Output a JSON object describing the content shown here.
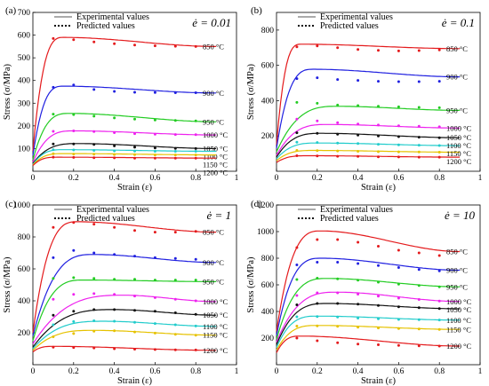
{
  "legend": {
    "line_label": "Experimental values",
    "dot_label": "Predicted values"
  },
  "chart_data": [
    {
      "type": "line",
      "panel": "(a)",
      "rate_label": "ė = 0.01",
      "xlabel": "Strain (ε)",
      "ylabel": "Stress (σ/MPa)",
      "xlim": [
        0,
        1
      ],
      "ylim": [
        0,
        700
      ],
      "xticks": [
        0,
        0.2,
        0.4,
        0.6,
        0.8,
        1
      ],
      "yticks": [
        100,
        200,
        300,
        400,
        500,
        600,
        700
      ],
      "series": [
        {
          "name": "850 °C",
          "color": "#e41a1c",
          "y0": 90,
          "peak_strain": 0.15,
          "peak_stress": 590,
          "final_stress": 550,
          "pred": [
            585,
            580,
            570,
            562,
            556,
            553,
            551,
            550
          ]
        },
        {
          "name": "900 °C",
          "color": "#2020e0",
          "y0": 70,
          "peak_strain": 0.15,
          "peak_stress": 375,
          "final_stress": 345,
          "pred": [
            370,
            380,
            360,
            352,
            348,
            347,
            346,
            346
          ]
        },
        {
          "name": "950 °C",
          "color": "#22cc22",
          "y0": 50,
          "peak_strain": 0.18,
          "peak_stress": 255,
          "final_stress": 218,
          "pred": [
            252,
            250,
            243,
            235,
            230,
            226,
            224,
            222
          ]
        },
        {
          "name": "1000 °C",
          "color": "#ee22ee",
          "y0": 40,
          "peak_strain": 0.2,
          "peak_stress": 178,
          "final_stress": 160,
          "pred": [
            176,
            178,
            175,
            170,
            166,
            163,
            162,
            161
          ]
        },
        {
          "name": "1050 °C",
          "color": "#111111",
          "y0": 35,
          "peak_strain": 0.22,
          "peak_stress": 122,
          "final_stress": 100,
          "pred": [
            120,
            120,
            118,
            112,
            106,
            103,
            101,
            100
          ]
        },
        {
          "name": "1100 °C",
          "color": "#22cccc",
          "y0": 30,
          "peak_strain": 0.15,
          "peak_stress": 95,
          "final_stress": 88,
          "pred": [
            95,
            94,
            92,
            90,
            89,
            88,
            88,
            88
          ]
        },
        {
          "name": "1150 °C",
          "color": "#e6c200",
          "y0": 28,
          "peak_strain": 0.15,
          "peak_stress": 78,
          "final_stress": 72,
          "pred": [
            77,
            76,
            75,
            74,
            73,
            72,
            72,
            72
          ]
        },
        {
          "name": "1200 °C",
          "color": "#e41a1c",
          "y0": 25,
          "peak_strain": 0.12,
          "peak_stress": 62,
          "final_stress": 58,
          "pred": [
            62,
            61,
            60,
            59,
            58,
            58,
            58,
            58
          ]
        }
      ]
    },
    {
      "type": "line",
      "panel": "(b)",
      "rate_label": "ė = 0.1",
      "xlabel": "Strain (ε)",
      "ylabel": "Stress (σ/MPa)",
      "xlim": [
        0,
        1
      ],
      "ylim": [
        0,
        900
      ],
      "xticks": [
        0,
        0.2,
        0.4,
        0.6,
        0.8,
        1
      ],
      "yticks": [
        200,
        400,
        600,
        800
      ],
      "series": [
        {
          "name": "850 °C",
          "color": "#e41a1c",
          "y0": 150,
          "peak_strain": 0.12,
          "peak_stress": 720,
          "final_stress": 695,
          "pred": [
            705,
            710,
            700,
            690,
            685,
            682,
            684,
            688
          ]
        },
        {
          "name": "900 °C",
          "color": "#2020e0",
          "y0": 130,
          "peak_strain": 0.18,
          "peak_stress": 578,
          "final_stress": 535,
          "pred": [
            525,
            530,
            520,
            515,
            510,
            508,
            508,
            510
          ]
        },
        {
          "name": "950 °C",
          "color": "#22cc22",
          "y0": 110,
          "peak_strain": 0.3,
          "peak_stress": 368,
          "final_stress": 345,
          "pred": [
            390,
            385,
            375,
            372,
            368,
            365,
            362,
            360
          ]
        },
        {
          "name": "1000 °C",
          "color": "#ee22ee",
          "y0": 90,
          "peak_strain": 0.25,
          "peak_stress": 265,
          "final_stress": 245,
          "pred": [
            295,
            285,
            275,
            268,
            262,
            258,
            255,
            252
          ]
        },
        {
          "name": "1050 °C",
          "color": "#111111",
          "y0": 80,
          "peak_strain": 0.22,
          "peak_stress": 215,
          "final_stress": 190,
          "pred": [
            218,
            215,
            210,
            205,
            200,
            196,
            193,
            190
          ]
        },
        {
          "name": "1100 °C",
          "color": "#22cccc",
          "y0": 70,
          "peak_strain": 0.2,
          "peak_stress": 160,
          "final_stress": 145,
          "pred": [
            165,
            163,
            160,
            157,
            153,
            150,
            148,
            146
          ]
        },
        {
          "name": "1150 °C",
          "color": "#e6c200",
          "y0": 60,
          "peak_strain": 0.18,
          "peak_stress": 118,
          "final_stress": 108,
          "pred": [
            118,
            117,
            115,
            113,
            111,
            110,
            109,
            108
          ]
        },
        {
          "name": "1200 °C",
          "color": "#e41a1c",
          "y0": 50,
          "peak_strain": 0.15,
          "peak_stress": 88,
          "final_stress": 80,
          "pred": [
            88,
            87,
            85,
            84,
            82,
            81,
            80,
            80
          ]
        }
      ]
    },
    {
      "type": "line",
      "panel": "(c)",
      "rate_label": "ė = 1",
      "xlabel": "Strain (ε)",
      "ylabel": "Stress (σ/MPa)",
      "xlim": [
        0,
        1
      ],
      "ylim": [
        0,
        1000
      ],
      "xticks": [
        0,
        0.2,
        0.4,
        0.6,
        0.8,
        1
      ],
      "yticks": [
        200,
        400,
        600,
        800,
        1000
      ],
      "series": [
        {
          "name": "850 °C",
          "color": "#e41a1c",
          "y0": 200,
          "peak_strain": 0.22,
          "peak_stress": 895,
          "final_stress": 830,
          "pred": [
            860,
            890,
            880,
            860,
            840,
            830,
            830,
            835
          ]
        },
        {
          "name": "900 °C",
          "color": "#2020e0",
          "y0": 180,
          "peak_strain": 0.3,
          "peak_stress": 690,
          "final_stress": 640,
          "pred": [
            670,
            715,
            700,
            690,
            680,
            670,
            665,
            660
          ]
        },
        {
          "name": "950 °C",
          "color": "#22cc22",
          "y0": 150,
          "peak_strain": 0.25,
          "peak_stress": 530,
          "final_stress": 520,
          "pred": [
            540,
            545,
            540,
            535,
            535,
            530,
            530,
            530
          ]
        },
        {
          "name": "1000 °C",
          "color": "#ee22ee",
          "y0": 130,
          "peak_strain": 0.45,
          "peak_stress": 435,
          "final_stress": 395,
          "pred": [
            410,
            440,
            445,
            440,
            430,
            420,
            410,
            400
          ]
        },
        {
          "name": "1050 °C",
          "color": "#111111",
          "y0": 110,
          "peak_strain": 0.4,
          "peak_stress": 345,
          "final_stress": 310,
          "pred": [
            310,
            335,
            345,
            345,
            340,
            335,
            325,
            315
          ]
        },
        {
          "name": "1100 °C",
          "color": "#22cccc",
          "y0": 100,
          "peak_strain": 0.35,
          "peak_stress": 272,
          "final_stress": 240,
          "pred": [
            250,
            270,
            275,
            272,
            265,
            258,
            250,
            242
          ]
        },
        {
          "name": "1150 °C",
          "color": "#e6c200",
          "y0": 90,
          "peak_strain": 0.3,
          "peak_stress": 215,
          "final_stress": 185,
          "pred": [
            175,
            195,
            210,
            212,
            205,
            198,
            190,
            185
          ]
        },
        {
          "name": "1200 °C",
          "color": "#e41a1c",
          "y0": 80,
          "peak_strain": 0.1,
          "peak_stress": 115,
          "final_stress": 90,
          "pred": [
            110,
            108,
            105,
            100,
            97,
            95,
            93,
            92
          ]
        }
      ]
    },
    {
      "type": "line",
      "panel": "(d)",
      "rate_label": "ė = 10",
      "xlabel": "Strain (ε)",
      "ylabel": "Stress (σ/MPa)",
      "xlim": [
        0,
        1
      ],
      "ylim": [
        0,
        1200
      ],
      "xticks": [
        0,
        0.2,
        0.4,
        0.6,
        0.8,
        1
      ],
      "yticks": [
        200,
        400,
        600,
        800,
        1000,
        1200
      ],
      "series": [
        {
          "name": "850 °C",
          "color": "#e41a1c",
          "y0": 250,
          "peak_strain": 0.22,
          "peak_stress": 1005,
          "final_stress": 850,
          "pred": [
            880,
            940,
            940,
            920,
            890,
            860,
            840,
            820
          ]
        },
        {
          "name": "900 °C",
          "color": "#2020e0",
          "y0": 220,
          "peak_strain": 0.22,
          "peak_stress": 800,
          "final_stress": 710,
          "pred": [
            750,
            770,
            770,
            760,
            745,
            730,
            715,
            705
          ]
        },
        {
          "name": "950 °C",
          "color": "#22cc22",
          "y0": 190,
          "peak_strain": 0.25,
          "peak_stress": 648,
          "final_stress": 585,
          "pred": [
            640,
            650,
            645,
            635,
            620,
            605,
            595,
            585
          ]
        },
        {
          "name": "1000 °C",
          "color": "#ee22ee",
          "y0": 170,
          "peak_strain": 0.3,
          "peak_stress": 545,
          "final_stress": 475,
          "pred": [
            520,
            540,
            540,
            530,
            515,
            500,
            490,
            478
          ]
        },
        {
          "name": "1050 °C",
          "color": "#111111",
          "y0": 150,
          "peak_strain": 0.25,
          "peak_stress": 460,
          "final_stress": 420,
          "pred": [
            450,
            460,
            460,
            455,
            445,
            435,
            428,
            422
          ]
        },
        {
          "name": "1100 °C",
          "color": "#22cccc",
          "y0": 130,
          "peak_strain": 0.2,
          "peak_stress": 365,
          "final_stress": 335,
          "pred": [
            360,
            362,
            358,
            350,
            345,
            340,
            338,
            336
          ]
        },
        {
          "name": "1150 °C",
          "color": "#e6c200",
          "y0": 110,
          "peak_strain": 0.2,
          "peak_stress": 295,
          "final_stress": 265,
          "pred": [
            290,
            292,
            288,
            282,
            276,
            272,
            268,
            265
          ]
        },
        {
          "name": "1200 °C",
          "color": "#e41a1c",
          "y0": 90,
          "peak_strain": 0.12,
          "peak_stress": 215,
          "final_stress": 140,
          "pred": [
            200,
            180,
            165,
            155,
            150,
            145,
            142,
            140
          ]
        }
      ]
    }
  ]
}
